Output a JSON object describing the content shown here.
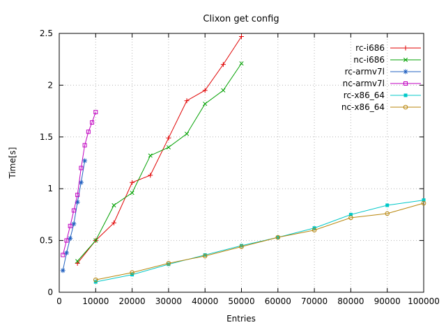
{
  "chart_data": {
    "type": "line",
    "title": "Clixon get config",
    "xlabel": "Entries",
    "ylabel": "Time[s]",
    "xlim": [
      0,
      100000
    ],
    "ylim": [
      0,
      2.5
    ],
    "xticks": [
      0,
      10000,
      20000,
      30000,
      40000,
      50000,
      60000,
      70000,
      80000,
      90000,
      100000
    ],
    "xtick_labels": [
      "0",
      "10000",
      "20000",
      "30000",
      "40000",
      "50000",
      "60000",
      "70000",
      "80000",
      "90000",
      "100000"
    ],
    "yticks": [
      0,
      0.5,
      1,
      1.5,
      2,
      2.5
    ],
    "ytick_labels": [
      "0",
      "0.5",
      "1",
      "1.5",
      "2",
      "2.5"
    ],
    "grid": true,
    "grid_color": "#b4b4b4",
    "axis_color": "#000000",
    "background": "#ffffff",
    "legend_position": "top-right-inside",
    "series": [
      {
        "name": "rc-i686",
        "color": "#e00000",
        "marker": "plus",
        "points": [
          [
            5000,
            0.28
          ],
          [
            10000,
            0.5
          ],
          [
            15000,
            0.67
          ],
          [
            20000,
            1.06
          ],
          [
            25000,
            1.13
          ],
          [
            30000,
            1.49
          ],
          [
            35000,
            1.85
          ],
          [
            40000,
            1.95
          ],
          [
            45000,
            2.2
          ],
          [
            50000,
            2.47
          ]
        ]
      },
      {
        "name": "nc-i686",
        "color": "#00a000",
        "marker": "cross",
        "points": [
          [
            5000,
            0.3
          ],
          [
            10000,
            0.5
          ],
          [
            15000,
            0.84
          ],
          [
            20000,
            0.96
          ],
          [
            25000,
            1.32
          ],
          [
            30000,
            1.4
          ],
          [
            35000,
            1.53
          ],
          [
            40000,
            1.82
          ],
          [
            45000,
            1.95
          ],
          [
            50000,
            2.21
          ]
        ]
      },
      {
        "name": "rc-armv7l",
        "color": "#2060c0",
        "marker": "asterisk",
        "points": [
          [
            1000,
            0.21
          ],
          [
            2000,
            0.38
          ],
          [
            3000,
            0.52
          ],
          [
            4000,
            0.66
          ],
          [
            5000,
            0.87
          ],
          [
            6000,
            1.06
          ],
          [
            7000,
            1.27
          ]
        ]
      },
      {
        "name": "nc-armv7l",
        "color": "#c000c0",
        "marker": "square-open",
        "points": [
          [
            1000,
            0.36
          ],
          [
            2000,
            0.5
          ],
          [
            3000,
            0.64
          ],
          [
            4000,
            0.79
          ],
          [
            5000,
            0.94
          ],
          [
            6000,
            1.2
          ],
          [
            7000,
            1.42
          ],
          [
            8000,
            1.55
          ],
          [
            9000,
            1.64
          ],
          [
            10000,
            1.74
          ]
        ]
      },
      {
        "name": "rc-x86_64",
        "color": "#00c8c8",
        "marker": "square-filled",
        "points": [
          [
            10000,
            0.1
          ],
          [
            20000,
            0.17
          ],
          [
            30000,
            0.27
          ],
          [
            40000,
            0.36
          ],
          [
            50000,
            0.45
          ],
          [
            60000,
            0.53
          ],
          [
            70000,
            0.62
          ],
          [
            80000,
            0.75
          ],
          [
            90000,
            0.84
          ],
          [
            100000,
            0.89
          ]
        ]
      },
      {
        "name": "nc-x86_64",
        "color": "#b8860b",
        "marker": "circle-open",
        "points": [
          [
            10000,
            0.12
          ],
          [
            20000,
            0.19
          ],
          [
            30000,
            0.28
          ],
          [
            40000,
            0.35
          ],
          [
            50000,
            0.44
          ],
          [
            60000,
            0.53
          ],
          [
            70000,
            0.6
          ],
          [
            80000,
            0.72
          ],
          [
            90000,
            0.76
          ],
          [
            100000,
            0.86
          ]
        ]
      }
    ]
  }
}
